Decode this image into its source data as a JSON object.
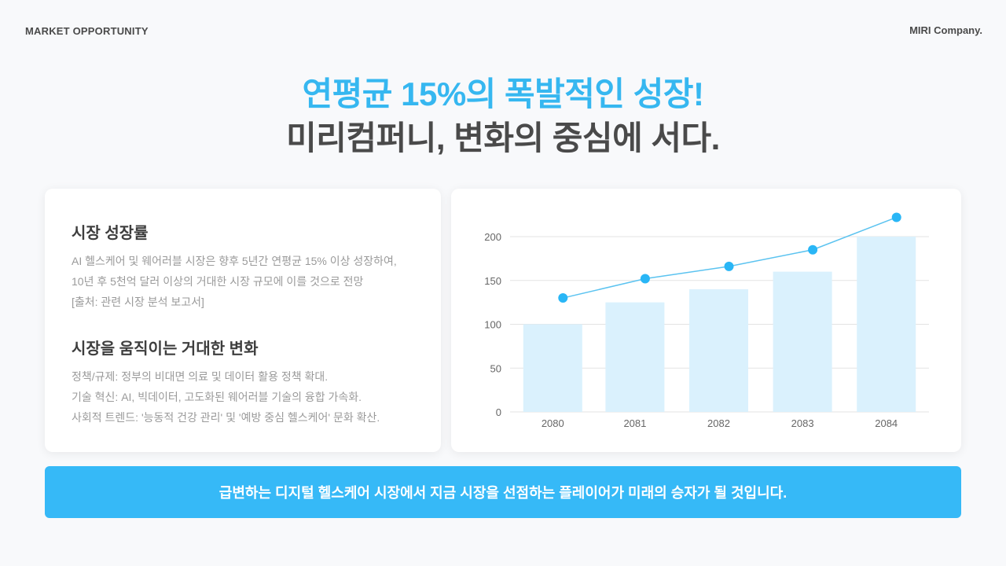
{
  "header": {
    "section_label": "MARKET OPPORTUNITY",
    "brand": "MIRI Company."
  },
  "headline": {
    "line1": "연평균 15%의 폭발적인 성장!",
    "line2": "미리컴퍼니, 변화의 중심에 서다."
  },
  "left_card": {
    "section1": {
      "title": "시장 성장률",
      "lines": [
        "AI 헬스케어 및 웨어러블 시장은 향후 5년간 연평균 15% 이상 성장하여,",
        "10년 후 5천억 달러 이상의 거대한 시장 규모에 이를 것으로 전망",
        "[출처: 관련 시장 분석 보고서]"
      ]
    },
    "section2": {
      "title": "시장을 움직이는 거대한 변화",
      "lines": [
        "정책/규제: 정부의 비대면 의료 및 데이터 활용 정책 확대.",
        "기술 혁신: AI, 빅데이터, 고도화된 웨어러블 기술의 융합 가속화.",
        "사회적 트렌드: '능동적 건강 관리' 및 '예방 중심 헬스케어' 문화 확산."
      ]
    }
  },
  "banner": {
    "text": "급변하는 디지털 헬스케어 시장에서 지금 시장을 선점하는 플레이어가 미래의 승자가 될 것입니다."
  },
  "colors": {
    "accent": "#36b7f0",
    "bar": "#daf1fd",
    "line": "#5bc3f0",
    "dot": "#29b6f6",
    "banner": "#36b9f7"
  },
  "chart_data": {
    "type": "bar+line",
    "title": "",
    "xlabel": "",
    "ylabel": "",
    "categories": [
      "2080",
      "2081",
      "2082",
      "2083",
      "2084"
    ],
    "series": [
      {
        "name": "bars",
        "type": "bar",
        "values": [
          100,
          125,
          140,
          160,
          200
        ]
      },
      {
        "name": "line",
        "type": "line",
        "values": [
          130,
          152,
          166,
          185,
          222
        ]
      }
    ],
    "yticks": [
      0,
      50,
      100,
      150,
      200
    ],
    "ylim": [
      0,
      200
    ],
    "grid": true,
    "legend": "none"
  }
}
